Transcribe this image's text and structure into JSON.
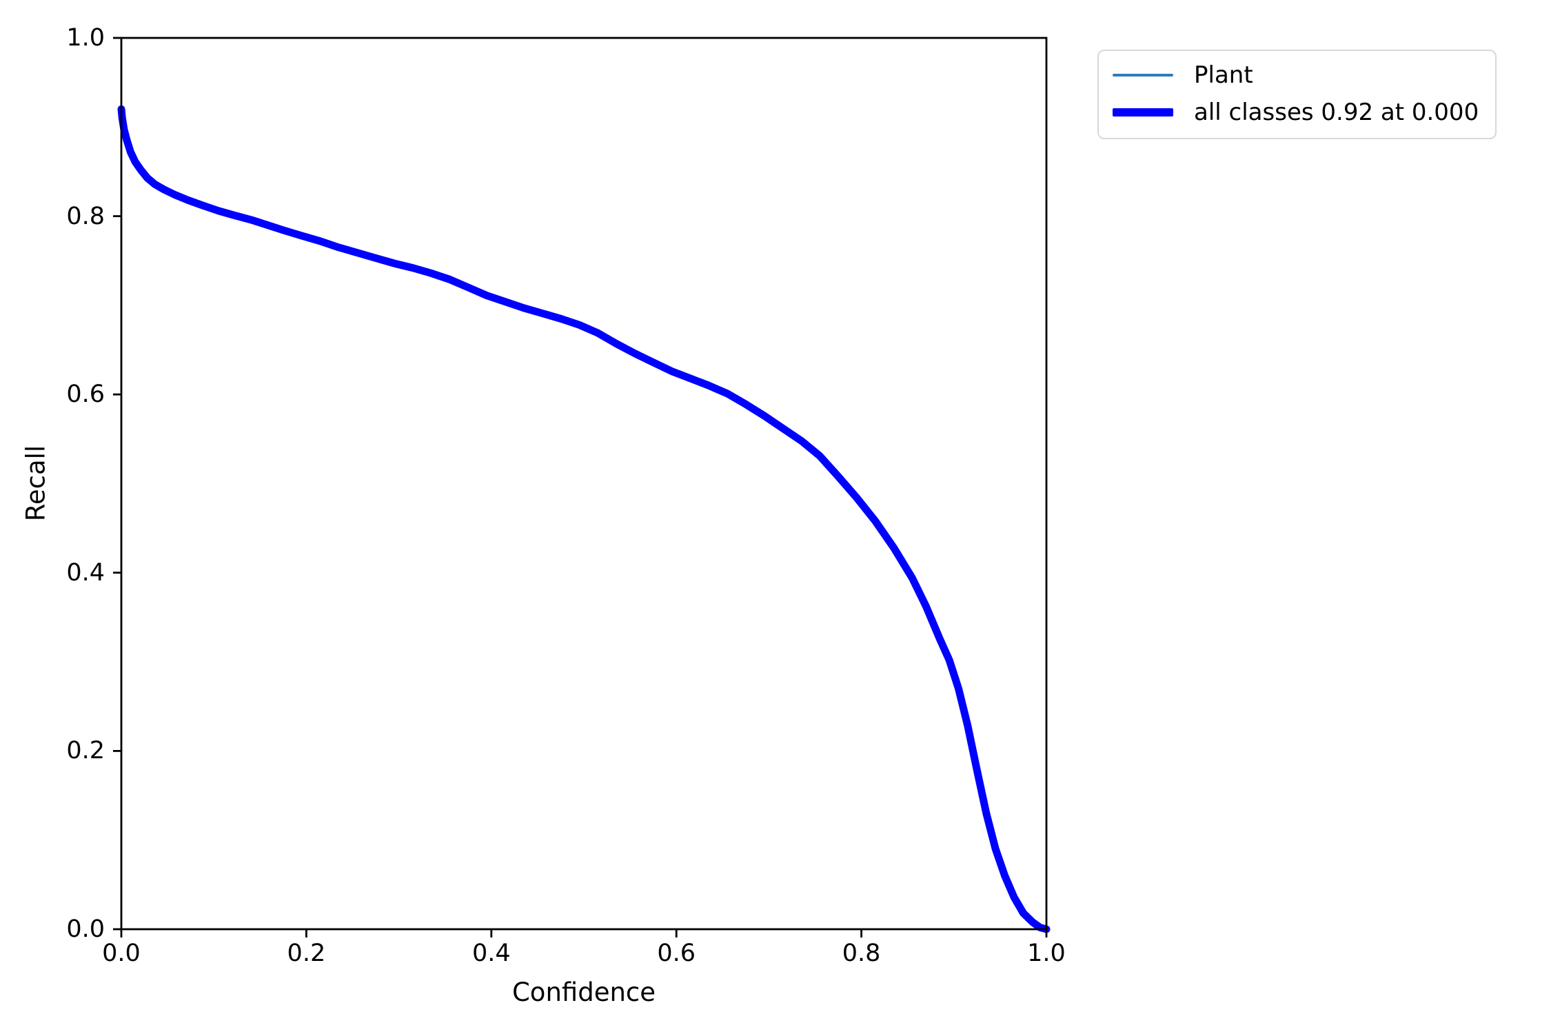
{
  "figure": {
    "background": "#ffffff",
    "text_color": "#000000",
    "spine_color": "#000000"
  },
  "chart_data": {
    "type": "line",
    "title": "",
    "xlabel": "Confidence",
    "ylabel": "Recall",
    "xlim": [
      0.0,
      1.0
    ],
    "ylim": [
      0.0,
      1.0
    ],
    "xticks": [
      "0.0",
      "0.2",
      "0.4",
      "0.6",
      "0.8",
      "1.0"
    ],
    "yticks": [
      "0.0",
      "0.2",
      "0.4",
      "0.6",
      "0.8",
      "1.0"
    ],
    "grid": false,
    "legend": {
      "position": "outside-upper-right",
      "entries": [
        {
          "label": "Plant",
          "color": "#2e7ebc",
          "line_width": 4
        },
        {
          "label": "all classes 0.92 at 0.000",
          "color": "#0000ff",
          "line_width": 12
        }
      ]
    },
    "series": [
      {
        "name": "Plant",
        "color": "#2e7ebc",
        "line_width": 3.5,
        "points": "shared_points"
      },
      {
        "name": "all classes 0.92 at 0.000",
        "color": "#0000ff",
        "line_width": 11,
        "points": "shared_points"
      }
    ],
    "shared_points": [
      [
        0.0,
        0.92
      ],
      [
        0.001,
        0.91
      ],
      [
        0.003,
        0.897
      ],
      [
        0.006,
        0.885
      ],
      [
        0.01,
        0.872
      ],
      [
        0.015,
        0.861
      ],
      [
        0.021,
        0.852
      ],
      [
        0.028,
        0.843
      ],
      [
        0.036,
        0.836
      ],
      [
        0.046,
        0.83
      ],
      [
        0.058,
        0.824
      ],
      [
        0.072,
        0.818
      ],
      [
        0.088,
        0.812
      ],
      [
        0.105,
        0.806
      ],
      [
        0.122,
        0.801
      ],
      [
        0.14,
        0.796
      ],
      [
        0.158,
        0.79
      ],
      [
        0.176,
        0.784
      ],
      [
        0.195,
        0.778
      ],
      [
        0.215,
        0.772
      ],
      [
        0.235,
        0.765
      ],
      [
        0.255,
        0.759
      ],
      [
        0.275,
        0.753
      ],
      [
        0.295,
        0.747
      ],
      [
        0.315,
        0.742
      ],
      [
        0.335,
        0.736
      ],
      [
        0.355,
        0.729
      ],
      [
        0.375,
        0.72
      ],
      [
        0.395,
        0.711
      ],
      [
        0.415,
        0.704
      ],
      [
        0.435,
        0.697
      ],
      [
        0.455,
        0.691
      ],
      [
        0.475,
        0.685
      ],
      [
        0.495,
        0.678
      ],
      [
        0.515,
        0.669
      ],
      [
        0.535,
        0.657
      ],
      [
        0.555,
        0.646
      ],
      [
        0.575,
        0.636
      ],
      [
        0.595,
        0.626
      ],
      [
        0.615,
        0.618
      ],
      [
        0.635,
        0.61
      ],
      [
        0.655,
        0.601
      ],
      [
        0.675,
        0.589
      ],
      [
        0.695,
        0.576
      ],
      [
        0.715,
        0.562
      ],
      [
        0.735,
        0.548
      ],
      [
        0.755,
        0.531
      ],
      [
        0.775,
        0.508
      ],
      [
        0.795,
        0.484
      ],
      [
        0.815,
        0.458
      ],
      [
        0.835,
        0.428
      ],
      [
        0.855,
        0.394
      ],
      [
        0.87,
        0.362
      ],
      [
        0.885,
        0.325
      ],
      [
        0.895,
        0.302
      ],
      [
        0.905,
        0.27
      ],
      [
        0.915,
        0.228
      ],
      [
        0.925,
        0.178
      ],
      [
        0.935,
        0.13
      ],
      [
        0.945,
        0.09
      ],
      [
        0.955,
        0.06
      ],
      [
        0.965,
        0.036
      ],
      [
        0.975,
        0.018
      ],
      [
        0.985,
        0.008
      ],
      [
        0.993,
        0.002
      ],
      [
        1.0,
        0.0
      ]
    ]
  }
}
